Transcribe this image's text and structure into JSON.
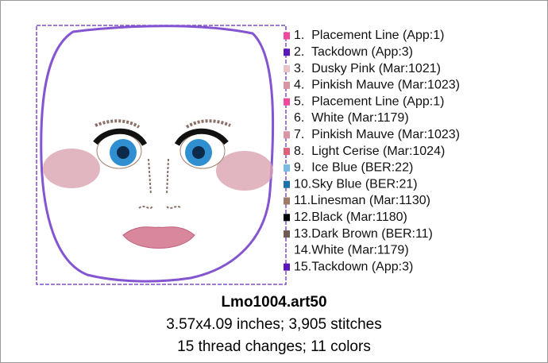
{
  "design": {
    "threads": [
      {
        "label": "1.  Placement Line (App:1)",
        "color": "#f0489a"
      },
      {
        "label": "2.  Tackdown (App:3)",
        "color": "#5a16b8"
      },
      {
        "label": "3.  Dusky Pink (Mar:1021)",
        "color": "#e8c4c8"
      },
      {
        "label": "4.  Pinkish Mauve (Mar:1023)",
        "color": "#d994a4"
      },
      {
        "label": "5.  Placement Line (App:1)",
        "color": "#f0489a"
      },
      {
        "label": "6.  White (Mar:1179)",
        "color": "#ffffff"
      },
      {
        "label": "7.  Pinkish Mauve (Mar:1023)",
        "color": "#d994a4"
      },
      {
        "label": "8.  Light Cerise (Mar:1024)",
        "color": "#e0607a"
      },
      {
        "label": "9.  Ice Blue (BER:22)",
        "color": "#78bce6"
      },
      {
        "label": "10.Sky Blue (BER:21)",
        "color": "#1c72a8"
      },
      {
        "label": "11.Linesman (Mar:1130)",
        "color": "#a07a68"
      },
      {
        "label": "12.Black (Mar:1180)",
        "color": "#000000"
      },
      {
        "label": "13.Dark Brown (BER:11)",
        "color": "#6e5a52"
      },
      {
        "label": "14.White (Mar:1179)",
        "color": "#ffffff"
      },
      {
        "label": "15.Tackdown (App:3)",
        "color": "#5a16b8"
      }
    ],
    "name": "Lmo1004.art50",
    "size_line": "3.57x4.09 inches; 3,905 stitches",
    "count_line": "15 thread changes; 11 colors"
  }
}
